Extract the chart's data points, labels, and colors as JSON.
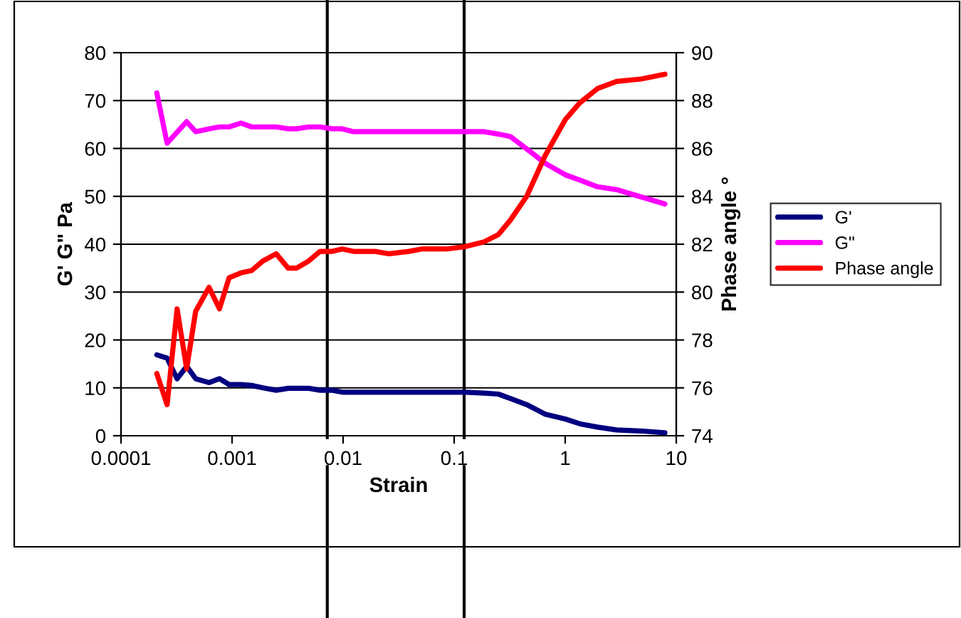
{
  "chart_data": {
    "type": "line",
    "xlabel": "Strain",
    "ylabel": "G' G\" Pa",
    "y2label": "Phase angle °",
    "x": [
      0.00021,
      0.00026,
      0.00032,
      0.00039,
      0.00047,
      0.00062,
      0.00077,
      0.00094,
      0.0012,
      0.0015,
      0.0019,
      0.0025,
      0.0032,
      0.0038,
      0.0049,
      0.0062,
      0.008,
      0.0098,
      0.0124,
      0.0194,
      0.026,
      0.039,
      0.051,
      0.085,
      0.126,
      0.186,
      0.25,
      0.32,
      0.45,
      0.66,
      1.0,
      1.35,
      1.95,
      2.9,
      4.8,
      7.9
    ],
    "series": [
      {
        "name": "G'",
        "color": "#000080",
        "values": [
          16.9,
          16.2,
          11.9,
          14.5,
          11.9,
          11.1,
          11.9,
          10.7,
          10.7,
          10.5,
          10.0,
          9.5,
          9.9,
          9.9,
          9.9,
          9.5,
          9.5,
          9.1,
          9.1,
          9.1,
          9.1,
          9.1,
          9.1,
          9.1,
          9.1,
          8.9,
          8.7,
          7.8,
          6.5,
          4.5,
          3.5,
          2.5,
          1.8,
          1.2,
          1.0,
          0.6
        ]
      },
      {
        "name": "G\"",
        "color": "#ff00ff",
        "values": [
          71.6,
          61.1,
          63.4,
          65.6,
          63.5,
          64.1,
          64.5,
          64.5,
          65.3,
          64.5,
          64.5,
          64.5,
          64.1,
          64.1,
          64.5,
          64.5,
          64.1,
          64.1,
          63.5,
          63.5,
          63.5,
          63.5,
          63.5,
          63.5,
          63.5,
          63.5,
          63.0,
          62.5,
          59.9,
          56.9,
          54.5,
          53.4,
          52.0,
          51.4,
          49.9,
          48.4
        ]
      },
      {
        "name": "Phase angle",
        "color": "#ff0000",
        "axis": "y2",
        "values": [
          76.6,
          75.3,
          79.3,
          76.8,
          79.2,
          80.2,
          79.3,
          80.6,
          80.8,
          80.9,
          81.3,
          81.6,
          81.0,
          81.0,
          81.3,
          81.7,
          81.7,
          81.8,
          81.7,
          81.7,
          81.6,
          81.7,
          81.8,
          81.8,
          81.9,
          82.1,
          82.4,
          83.0,
          84.0,
          85.7,
          87.2,
          87.9,
          88.5,
          88.8,
          88.9,
          89.1
        ]
      }
    ],
    "log": "x",
    "xlim": [
      0.0001,
      10
    ],
    "xticks": [
      0.0001,
      0.001,
      0.01,
      0.1,
      1,
      10
    ],
    "ylim": [
      0,
      80
    ],
    "yticks": [
      0,
      10,
      20,
      30,
      40,
      50,
      60,
      70,
      80
    ],
    "y2lim": [
      74,
      90
    ],
    "y2ticks": [
      74,
      76,
      78,
      80,
      82,
      84,
      86,
      88,
      90
    ],
    "ref_lines": [
      {
        "axis": "x",
        "value": 0.0072,
        "color": "#000000"
      },
      {
        "axis": "x",
        "value": 0.123,
        "color": "#000000"
      }
    ],
    "grid": "y",
    "legend": "right"
  }
}
